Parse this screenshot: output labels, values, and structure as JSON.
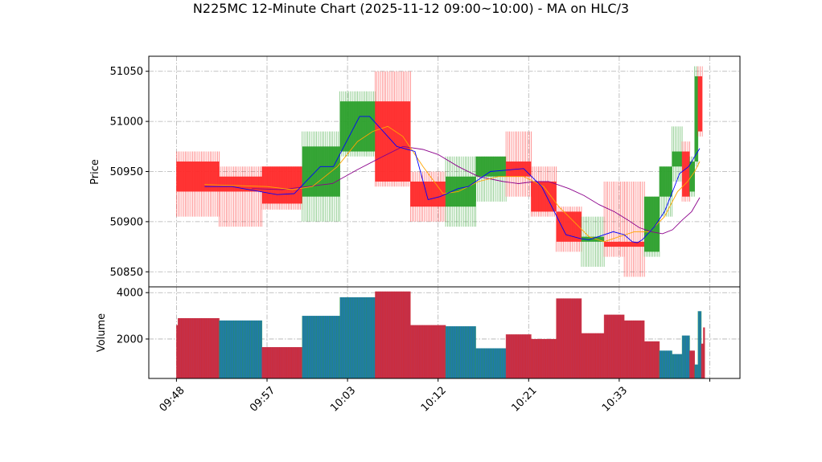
{
  "chart_data": [
    {
      "type": "candlestick",
      "title": "N225MC 12-Minute Chart (2025-11-12 09:00~10:00) - MA on HLC/3",
      "ylabel": "Price",
      "ylim": [
        50835,
        51065
      ],
      "yticks": [
        50850,
        50900,
        50950,
        51000,
        51050
      ],
      "grid": true,
      "colors": {
        "up": "#2ca02c",
        "down": "#ff2a2a",
        "ma_fast": "#0000ff",
        "ma_mid": "#ffa500",
        "ma_slow": "#8b008b"
      },
      "candles": [
        {
          "t": 0,
          "w": 4.25,
          "open": 50960,
          "high": 50970,
          "low": 50905,
          "close": 50930
        },
        {
          "t": 4.25,
          "w": 4.25,
          "open": 50945,
          "high": 50955,
          "low": 50895,
          "close": 50930
        },
        {
          "t": 8.5,
          "w": 4.0,
          "open": 50955,
          "high": 50955,
          "low": 50912,
          "close": 50918
        },
        {
          "t": 12.5,
          "w": 3.75,
          "open": 50925,
          "high": 50990,
          "low": 50900,
          "close": 50975
        },
        {
          "t": 16.25,
          "w": 3.5,
          "open": 50970,
          "high": 51030,
          "low": 50965,
          "close": 51020
        },
        {
          "t": 19.75,
          "w": 3.5,
          "open": 51020,
          "high": 51050,
          "low": 50935,
          "close": 50940
        },
        {
          "t": 23.25,
          "w": 3.5,
          "open": 50940,
          "high": 50950,
          "low": 50900,
          "close": 50915
        },
        {
          "t": 26.75,
          "w": 3.0,
          "open": 50915,
          "high": 50965,
          "low": 50895,
          "close": 50945
        },
        {
          "t": 29.75,
          "w": 3.0,
          "open": 50945,
          "high": 50965,
          "low": 50920,
          "close": 50965
        },
        {
          "t": 32.75,
          "w": 2.5,
          "open": 50960,
          "high": 50990,
          "low": 50925,
          "close": 50945
        },
        {
          "t": 35.25,
          "w": 2.5,
          "open": 50940,
          "high": 50955,
          "low": 50905,
          "close": 50910
        },
        {
          "t": 37.75,
          "w": 2.5,
          "open": 50910,
          "high": 50915,
          "low": 50870,
          "close": 50880
        },
        {
          "t": 40.25,
          "w": 2.25,
          "open": 50880,
          "high": 50905,
          "low": 50855,
          "close": 50885
        },
        {
          "t": 42.5,
          "w": 2.0,
          "open": 50880,
          "high": 50940,
          "low": 50865,
          "close": 50875
        },
        {
          "t": 44.5,
          "w": 2.0,
          "open": 50880,
          "high": 50940,
          "low": 50845,
          "close": 50875
        },
        {
          "t": 46.5,
          "w": 1.5,
          "open": 50870,
          "high": 50925,
          "low": 50865,
          "close": 50925
        },
        {
          "t": 48.0,
          "w": 1.25,
          "open": 50925,
          "high": 50955,
          "low": 50905,
          "close": 50955
        },
        {
          "t": 49.25,
          "w": 1.0,
          "open": 50955,
          "high": 50995,
          "low": 50940,
          "close": 50970
        },
        {
          "t": 50.25,
          "w": 0.75,
          "open": 50970,
          "high": 50980,
          "low": 50920,
          "close": 50925
        },
        {
          "t": 51.0,
          "w": 0.5,
          "open": 50930,
          "high": 50965,
          "low": 50925,
          "close": 50960
        },
        {
          "t": 51.5,
          "w": 0.33,
          "open": 50960,
          "high": 51055,
          "low": 50955,
          "close": 51045
        },
        {
          "t": 51.83,
          "w": 0.42,
          "open": 51045,
          "high": 51055,
          "low": 50985,
          "close": 50990
        }
      ],
      "ma_fast": [
        [
          2.8,
          50935
        ],
        [
          5.5,
          50935
        ],
        [
          10.0,
          50927
        ],
        [
          11.7,
          50928
        ],
        [
          14.3,
          50955
        ],
        [
          15.6,
          50955
        ],
        [
          18.2,
          51005
        ],
        [
          19.2,
          51005
        ],
        [
          21.9,
          50975
        ],
        [
          23.7,
          50970
        ],
        [
          25.0,
          50922
        ],
        [
          26.2,
          50925
        ],
        [
          28.0,
          50933
        ],
        [
          29.0,
          50935
        ],
        [
          31.2,
          50950
        ],
        [
          34.5,
          50953
        ],
        [
          36.3,
          50935
        ],
        [
          38.7,
          50887
        ],
        [
          40.2,
          50883
        ],
        [
          41.0,
          50882
        ],
        [
          43.4,
          50890
        ],
        [
          44.5,
          50887
        ],
        [
          45.3,
          50880
        ],
        [
          45.8,
          50879
        ],
        [
          46.3,
          50882
        ],
        [
          47.5,
          50895
        ],
        [
          48.5,
          50910
        ],
        [
          49.3,
          50930
        ],
        [
          50.0,
          50948
        ],
        [
          50.9,
          50955
        ],
        [
          51.5,
          50965
        ],
        [
          52.0,
          50973
        ]
      ],
      "ma_mid": [
        [
          2.8,
          50937
        ],
        [
          9.0,
          50935
        ],
        [
          11.5,
          50932
        ],
        [
          13.5,
          50935
        ],
        [
          16.0,
          50955
        ],
        [
          18.0,
          50980
        ],
        [
          19.5,
          50990
        ],
        [
          21.0,
          50995
        ],
        [
          22.5,
          50985
        ],
        [
          24.5,
          50955
        ],
        [
          26.5,
          50928
        ],
        [
          28.0,
          50930
        ],
        [
          30.0,
          50940
        ],
        [
          32.0,
          50945
        ],
        [
          34.5,
          50945
        ],
        [
          36.5,
          50935
        ],
        [
          38.0,
          50915
        ],
        [
          39.5,
          50900
        ],
        [
          41.0,
          50885
        ],
        [
          42.5,
          50880
        ],
        [
          44.0,
          50885
        ],
        [
          45.5,
          50890
        ],
        [
          47.0,
          50890
        ],
        [
          48.5,
          50905
        ],
        [
          49.8,
          50930
        ],
        [
          50.8,
          50940
        ],
        [
          51.5,
          50950
        ],
        [
          52.0,
          50960
        ]
      ],
      "ma_slow": [
        [
          7.5,
          50933
        ],
        [
          10.5,
          50932
        ],
        [
          13.0,
          50935
        ],
        [
          15.5,
          50938
        ],
        [
          18.0,
          50952
        ],
        [
          20.5,
          50965
        ],
        [
          22.5,
          50975
        ],
        [
          24.5,
          50972
        ],
        [
          26.0,
          50967
        ],
        [
          28.0,
          50955
        ],
        [
          30.0,
          50945
        ],
        [
          32.5,
          50940
        ],
        [
          34.0,
          50938
        ],
        [
          35.5,
          50940
        ],
        [
          37.0,
          50940
        ],
        [
          39.0,
          50933
        ],
        [
          40.5,
          50926
        ],
        [
          42.0,
          50917
        ],
        [
          43.5,
          50910
        ],
        [
          44.8,
          50902
        ],
        [
          46.0,
          50894
        ],
        [
          47.2,
          50890
        ],
        [
          48.3,
          50888
        ],
        [
          49.3,
          50892
        ],
        [
          50.3,
          50902
        ],
        [
          51.2,
          50910
        ],
        [
          52.0,
          50924
        ]
      ]
    },
    {
      "type": "bar",
      "ylabel": "Volume",
      "ylim": [
        300,
        4250
      ],
      "yticks": [
        2000,
        4000
      ],
      "grid": true,
      "colors": {
        "up": "#1f77b4",
        "down": "#c4314b",
        "up_edge": "#2ca02c",
        "down_edge": "#d62728"
      },
      "bars": [
        {
          "t": 0,
          "w": 0.15,
          "value": 2600,
          "dir": "down"
        },
        {
          "t": 0.15,
          "w": 4.1,
          "value": 2900,
          "dir": "down"
        },
        {
          "t": 4.25,
          "w": 4.25,
          "value": 2800,
          "dir": "up"
        },
        {
          "t": 8.5,
          "w": 4.0,
          "value": 1650,
          "dir": "down"
        },
        {
          "t": 12.5,
          "w": 3.75,
          "value": 3000,
          "dir": "up"
        },
        {
          "t": 16.25,
          "w": 3.5,
          "value": 3800,
          "dir": "up"
        },
        {
          "t": 19.75,
          "w": 3.5,
          "value": 4050,
          "dir": "down"
        },
        {
          "t": 23.25,
          "w": 3.5,
          "value": 2600,
          "dir": "down"
        },
        {
          "t": 26.75,
          "w": 3.0,
          "value": 2550,
          "dir": "up"
        },
        {
          "t": 29.75,
          "w": 3.0,
          "value": 1600,
          "dir": "up"
        },
        {
          "t": 32.75,
          "w": 2.5,
          "value": 2200,
          "dir": "down"
        },
        {
          "t": 35.25,
          "w": 2.5,
          "value": 2000,
          "dir": "down"
        },
        {
          "t": 37.75,
          "w": 2.5,
          "value": 3750,
          "dir": "down"
        },
        {
          "t": 40.25,
          "w": 2.25,
          "value": 2250,
          "dir": "down"
        },
        {
          "t": 42.5,
          "w": 2.0,
          "value": 3050,
          "dir": "down"
        },
        {
          "t": 44.5,
          "w": 2.0,
          "value": 2800,
          "dir": "down"
        },
        {
          "t": 46.5,
          "w": 1.5,
          "value": 1900,
          "dir": "down"
        },
        {
          "t": 48.0,
          "w": 1.25,
          "value": 1500,
          "dir": "up"
        },
        {
          "t": 49.25,
          "w": 1.0,
          "value": 1350,
          "dir": "up"
        },
        {
          "t": 50.25,
          "w": 0.75,
          "value": 2150,
          "dir": "up"
        },
        {
          "t": 51.0,
          "w": 0.5,
          "value": 1500,
          "dir": "down"
        },
        {
          "t": 51.5,
          "w": 0.33,
          "value": 900,
          "dir": "up"
        },
        {
          "t": 51.83,
          "w": 0.33,
          "value": 3200,
          "dir": "up"
        },
        {
          "t": 52.16,
          "w": 0.2,
          "value": 1800,
          "dir": "down"
        },
        {
          "t": 52.36,
          "w": 0.14,
          "value": 2500,
          "dir": "down"
        }
      ]
    }
  ],
  "xaxis": {
    "ticks": [
      {
        "t": 0,
        "label": "09:48"
      },
      {
        "t": 9,
        "label": "09:57"
      },
      {
        "t": 17,
        "label": "10:03"
      },
      {
        "t": 26,
        "label": "10:12"
      },
      {
        "t": 35,
        "label": "10:21"
      },
      {
        "t": 44,
        "label": "10:33"
      },
      {
        "t": 53,
        "label": ""
      }
    ],
    "range": [
      -2.75,
      56.0
    ]
  }
}
